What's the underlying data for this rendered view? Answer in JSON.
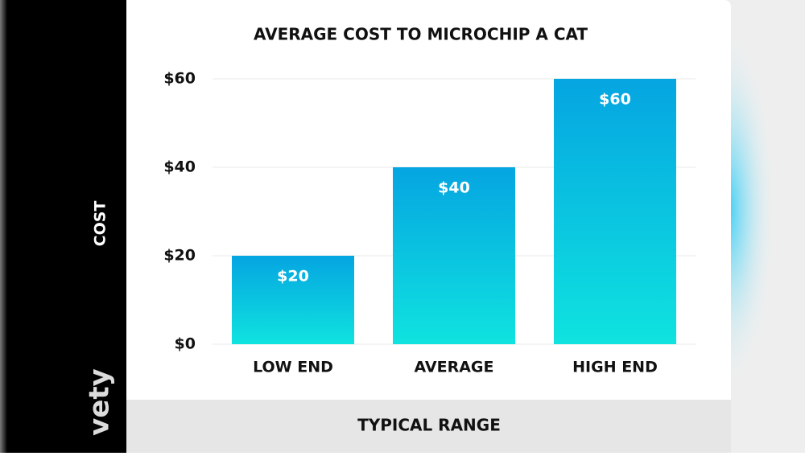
{
  "brand": "vety",
  "chart_data": {
    "type": "bar",
    "title": "AVERAGE COST TO MICROCHIP A CAT",
    "y_label": "COST",
    "x_label": "TYPICAL RANGE",
    "categories": [
      "LOW END",
      "AVERAGE",
      "HIGH END"
    ],
    "values": [
      20,
      40,
      60
    ],
    "value_labels": [
      "$20",
      "$40",
      "$60"
    ],
    "gradient": [
      "#05a5e1",
      "#0fe3df"
    ],
    "ylim": [
      0,
      60
    ],
    "yticks": [
      {
        "value": 0,
        "label": "$0"
      },
      {
        "value": 20,
        "label": "$20"
      },
      {
        "value": 40,
        "label": "$40"
      },
      {
        "value": 60,
        "label": "$60"
      }
    ],
    "grid": true
  }
}
